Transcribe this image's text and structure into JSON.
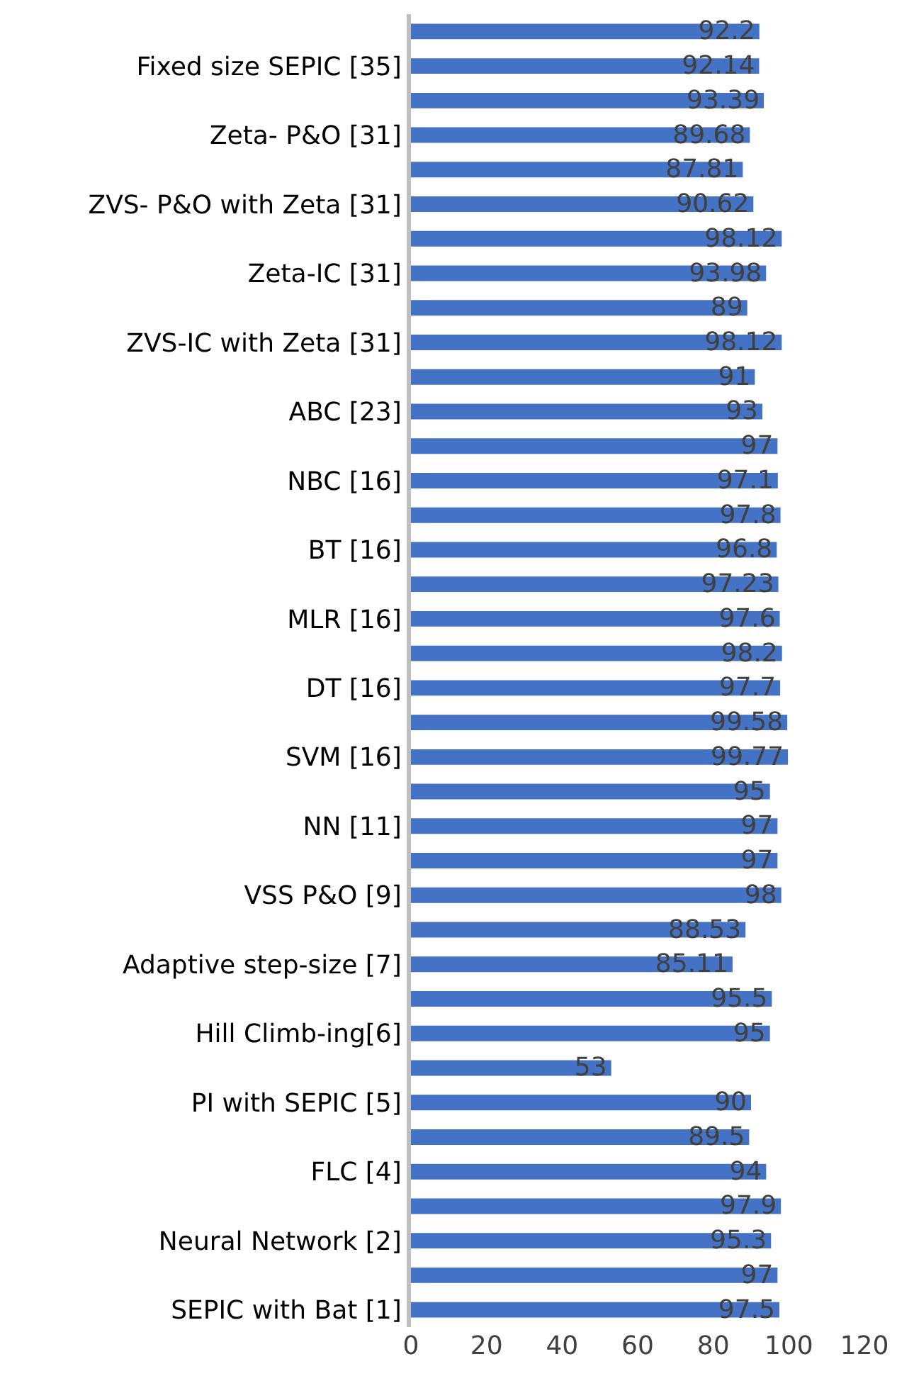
{
  "chart_data": {
    "type": "bar",
    "orientation": "horizontal",
    "categories": [
      null,
      "Fixed size SEPIC [35]",
      null,
      "Zeta- P&O [31]",
      null,
      "ZVS- P&O with Zeta [31]",
      null,
      "Zeta-IC [31]",
      null,
      "ZVS-IC with Zeta [31]",
      null,
      "ABC [23]",
      null,
      "NBC [16]",
      null,
      "BT [16]",
      null,
      "MLR [16]",
      null,
      "DT [16]",
      null,
      "SVM [16]",
      null,
      "NN [11]",
      null,
      "VSS P&O [9]",
      null,
      "Adaptive step-size [7]",
      null,
      "Hill Climb-ing[6]",
      null,
      "PI with SEPIC [5]",
      null,
      "FLC [4]",
      null,
      "Neural Network [2]",
      null,
      "SEPIC with Bat [1]"
    ],
    "values": [
      92.2,
      92.14,
      93.39,
      89.68,
      87.81,
      90.62,
      98.12,
      93.98,
      89,
      98.12,
      91,
      93,
      97,
      97.1,
      97.8,
      96.8,
      97.23,
      97.6,
      98.2,
      97.7,
      99.58,
      99.77,
      95,
      97,
      97,
      98,
      88.53,
      85.11,
      95.5,
      95,
      53,
      90,
      89.5,
      94,
      97.9,
      95.3,
      97,
      97.5
    ],
    "color": "#4472c4",
    "xlim": [
      0,
      120
    ],
    "xticks": [
      0,
      20,
      40,
      60,
      80,
      100,
      120
    ],
    "grid": false,
    "legend": false,
    "data_labels": true
  }
}
